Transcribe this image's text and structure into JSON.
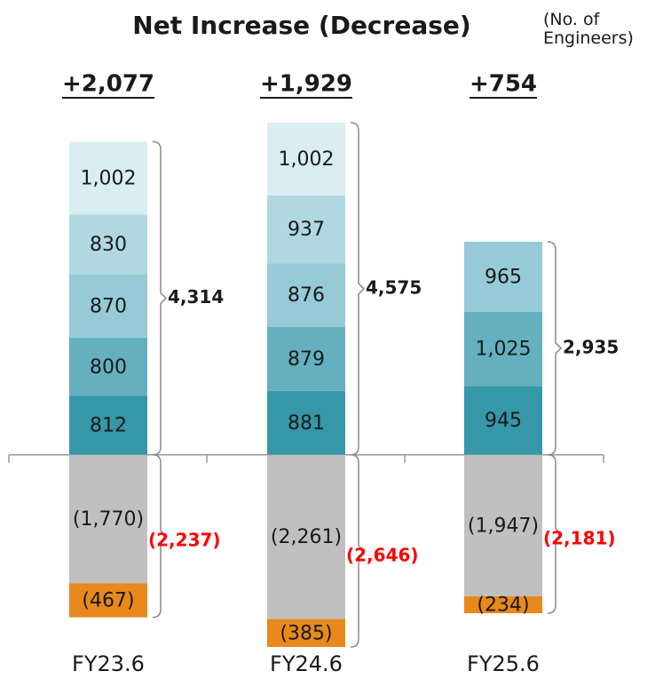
{
  "chart_data": {
    "type": "stacked_bar",
    "title": "Net Increase (Decrease)",
    "unit": "(No. of Engineers)",
    "categories": [
      "FY23.6",
      "FY24.6",
      "FY25.6"
    ],
    "series": [
      {
        "color": "#3597a8",
        "values": [
          812,
          881,
          945
        ],
        "value_labels": [
          "812",
          "881",
          "945"
        ]
      },
      {
        "color": "#64b0bf",
        "values": [
          800,
          879,
          1025
        ],
        "value_labels": [
          "800",
          "879",
          "1,025"
        ]
      },
      {
        "color": "#95cad6",
        "values": [
          870,
          876,
          965
        ],
        "value_labels": [
          "870",
          "876",
          "965"
        ]
      },
      {
        "color": "#b1d8e1",
        "values": [
          830,
          937,
          null
        ],
        "value_labels": [
          "830",
          "937",
          null
        ]
      },
      {
        "color": "#daedf1",
        "values": [
          1002,
          1002,
          null
        ],
        "value_labels": [
          "1,002",
          "1,002",
          null
        ]
      },
      {
        "color": "#c0c0c0",
        "values": [
          -1770,
          -2261,
          -1947
        ],
        "value_labels": [
          "(1,770)",
          "(2,261)",
          "(1,947)"
        ]
      },
      {
        "color": "#e8891c",
        "values": [
          -467,
          -385,
          -234
        ],
        "value_labels": [
          "(467)",
          "(385)",
          "(234)"
        ]
      }
    ],
    "positive_totals": {
      "values": [
        4314,
        4575,
        2935
      ],
      "value_labels": [
        "4,314",
        "4,575",
        "2,935"
      ]
    },
    "negative_totals": {
      "values": [
        -2237,
        -2646,
        -2181
      ],
      "value_labels": [
        "(2,237)",
        "(2,646)",
        "(2,181)"
      ],
      "color": "#ff0000"
    },
    "net_change": {
      "values": [
        2077,
        1929,
        754
      ],
      "value_labels": [
        "+2,077",
        "+1,929",
        "+754"
      ]
    }
  }
}
